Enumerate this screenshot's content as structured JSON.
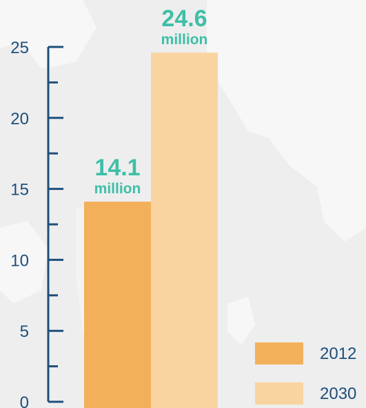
{
  "chart_data": {
    "type": "bar",
    "categories": [
      "2012",
      "2030"
    ],
    "values": [
      14.1,
      24.6
    ],
    "data_labels": [
      {
        "value": "14.1",
        "unit": "million"
      },
      {
        "value": "24.6",
        "unit": "million"
      }
    ],
    "y_ticks": [
      "0",
      "5",
      "10",
      "15",
      "20",
      "25"
    ],
    "ylim": [
      0,
      25
    ],
    "legend": [
      {
        "label": "2012",
        "color": "#f3b05a"
      },
      {
        "label": "2030",
        "color": "#f9d4a0"
      }
    ],
    "legend_position": "bottom-right",
    "grid": false,
    "colors": {
      "axis": "#1e4f7a",
      "data_label": "#3ebfa6",
      "background": "#eeeeef",
      "map": "#f7f7f8"
    }
  }
}
